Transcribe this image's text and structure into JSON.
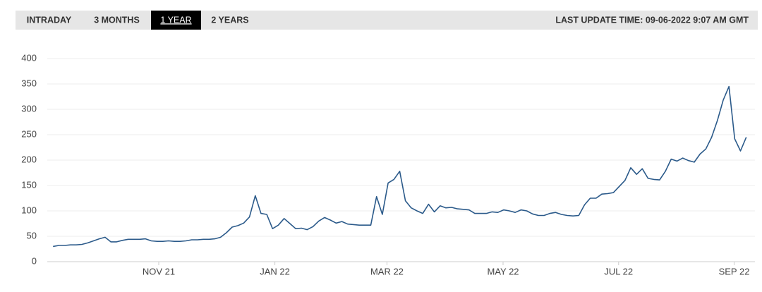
{
  "tabs": {
    "items": [
      "INTRADAY",
      "3 MONTHS",
      "1 YEAR",
      "2 YEARS"
    ],
    "selected": 2
  },
  "last_update": "LAST UPDATE TIME: 09-06-2022 9:07 AM GMT",
  "chart_data": {
    "type": "line",
    "color": "#2b5a8a",
    "grid": true,
    "values": [
      30,
      32,
      32,
      33,
      33,
      34,
      37,
      41,
      45,
      48,
      39,
      39,
      42,
      44,
      44,
      44,
      45,
      41,
      40,
      40,
      41,
      40,
      40,
      41,
      43,
      43,
      44,
      44,
      45,
      48,
      57,
      68,
      71,
      76,
      88,
      130,
      95,
      93,
      65,
      72,
      85,
      75,
      65,
      66,
      63,
      69,
      80,
      87,
      82,
      76,
      79,
      74,
      73,
      72,
      72,
      72,
      128,
      93,
      155,
      162,
      178,
      120,
      106,
      100,
      95,
      113,
      98,
      110,
      106,
      107,
      104,
      103,
      102,
      95,
      95,
      95,
      98,
      97,
      102,
      100,
      97,
      102,
      100,
      94,
      91,
      91,
      95,
      97,
      93,
      91,
      90,
      91,
      112,
      125,
      125,
      133,
      134,
      136,
      148,
      160,
      185,
      172,
      183,
      164,
      162,
      161,
      178,
      202,
      198,
      204,
      199,
      196,
      212,
      222,
      245,
      278,
      318,
      345,
      242,
      218,
      245
    ],
    "xlim": [
      -1,
      121.5
    ],
    "xticks": [
      {
        "value": 18.3,
        "label": "NOV 21"
      },
      {
        "value": 38.4,
        "label": "JAN 22"
      },
      {
        "value": 57.8,
        "label": "MAR 22"
      },
      {
        "value": 77.9,
        "label": "MAY 22"
      },
      {
        "value": 97.9,
        "label": "JUL 22"
      },
      {
        "value": 117.9,
        "label": "SEP 22"
      }
    ],
    "ylim": [
      0,
      400
    ],
    "yticks": [
      0,
      50,
      100,
      150,
      200,
      250,
      300,
      350,
      400
    ]
  }
}
